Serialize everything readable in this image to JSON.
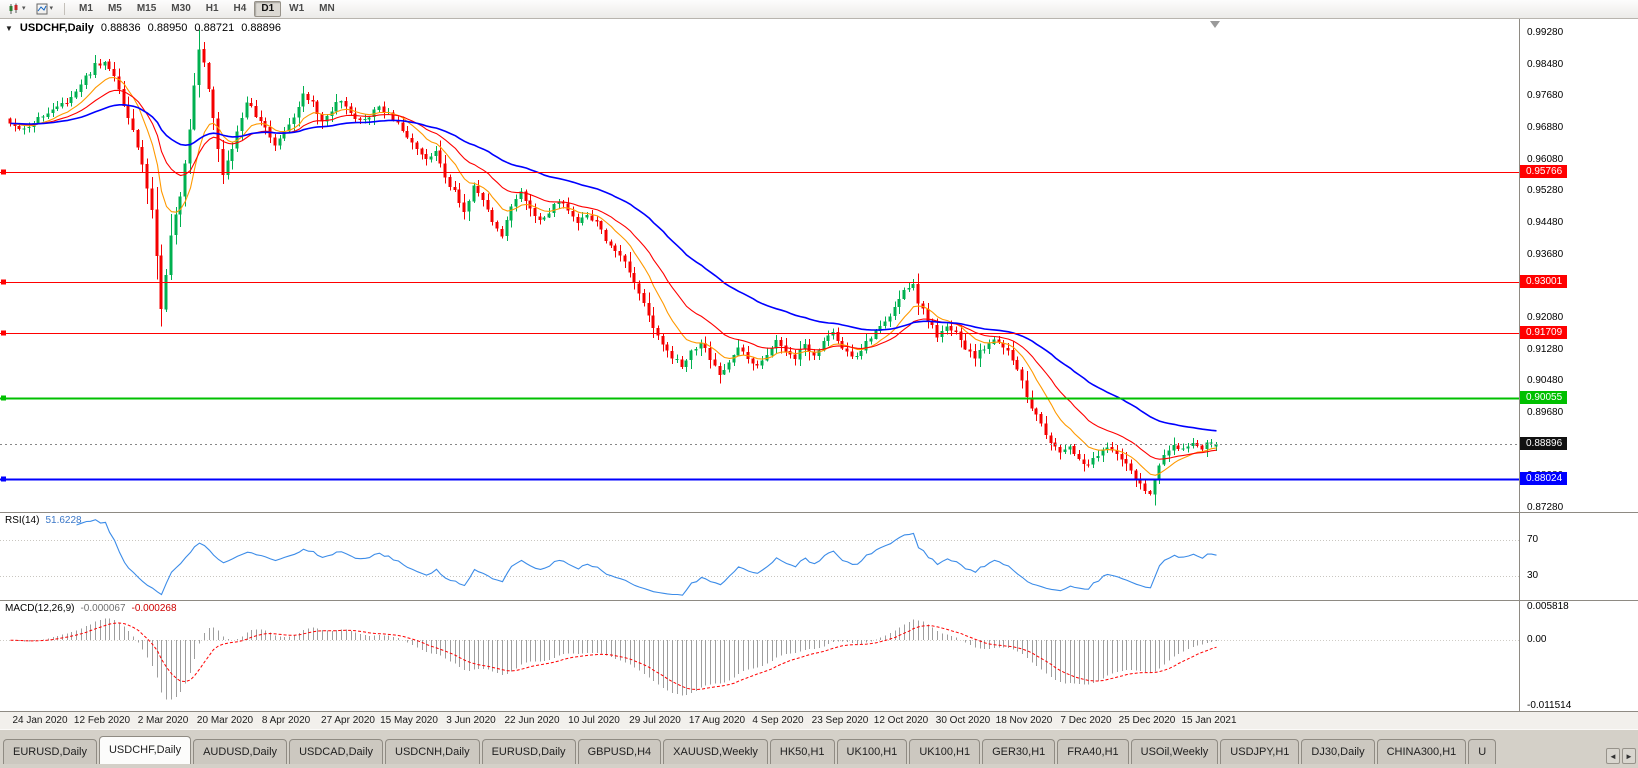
{
  "icons": {
    "collapse": "▼",
    "caret": "▾",
    "scroll_left": "◄",
    "scroll_right": "►"
  },
  "toolbar": {
    "timeframes": [
      "M1",
      "M5",
      "M15",
      "M30",
      "H1",
      "H4",
      "D1",
      "W1",
      "MN"
    ],
    "active_timeframe": "D1"
  },
  "chart": {
    "title": "USDCHF,Daily",
    "ohlc": {
      "open": "0.88836",
      "high": "0.88950",
      "low": "0.88721",
      "close": "0.88896"
    }
  },
  "chart_data": {
    "type": "candlestick",
    "symbol": "USDCHF",
    "timeframe": "Daily",
    "bars": 256,
    "bars_per_label": 13,
    "y_axis": {
      "max": 0.9928,
      "min": 0.8728,
      "tick_labels": [
        "0.99280",
        "0.98480",
        "0.97680",
        "0.96880",
        "0.96080",
        "0.95280",
        "0.94480",
        "0.93680",
        "0.92880",
        "0.92080",
        "0.91280",
        "0.90480",
        "0.89680",
        "0.88880",
        "0.88080",
        "0.87280"
      ]
    },
    "x_axis_labels": [
      "24 Jan 2020",
      "12 Feb 2020",
      "2 Mar 2020",
      "20 Mar 2020",
      "8 Apr 2020",
      "27 Apr 2020",
      "15 May 2020",
      "3 Jun 2020",
      "22 Jun 2020",
      "10 Jul 2020",
      "29 Jul 2020",
      "17 Aug 2020",
      "4 Sep 2020",
      "23 Sep 2020",
      "12 Oct 2020",
      "30 Oct 2020",
      "18 Nov 2020",
      "7 Dec 2020",
      "25 Dec 2020",
      "15 Jan 2021"
    ],
    "last_bar": {
      "open": 0.88836,
      "high": 0.8895,
      "low": 0.88721,
      "close": 0.88896
    },
    "price_anchors": [
      [
        0,
        0.97
      ],
      [
        3,
        0.9688
      ],
      [
        6,
        0.9712
      ],
      [
        9,
        0.973
      ],
      [
        12,
        0.9755
      ],
      [
        15,
        0.98
      ],
      [
        18,
        0.9845
      ],
      [
        20,
        0.9852
      ],
      [
        22,
        0.9815
      ],
      [
        24,
        0.975
      ],
      [
        26,
        0.968
      ],
      [
        28,
        0.96
      ],
      [
        30,
        0.948
      ],
      [
        31,
        0.936
      ],
      [
        32,
        0.923
      ],
      [
        33,
        0.932
      ],
      [
        34,
        0.941
      ],
      [
        36,
        0.952
      ],
      [
        38,
        0.968
      ],
      [
        39,
        0.98
      ],
      [
        40,
        0.9885
      ],
      [
        41,
        0.986
      ],
      [
        42,
        0.979
      ],
      [
        43,
        0.9715
      ],
      [
        44,
        0.964
      ],
      [
        45,
        0.9565
      ],
      [
        46,
        0.96
      ],
      [
        48,
        0.968
      ],
      [
        50,
        0.9755
      ],
      [
        52,
        0.972
      ],
      [
        54,
        0.9685
      ],
      [
        56,
        0.965
      ],
      [
        58,
        0.9685
      ],
      [
        60,
        0.972
      ],
      [
        62,
        0.9775
      ],
      [
        64,
        0.975
      ],
      [
        66,
        0.971
      ],
      [
        68,
        0.9735
      ],
      [
        70,
        0.976
      ],
      [
        72,
        0.973
      ],
      [
        74,
        0.9705
      ],
      [
        76,
        0.972
      ],
      [
        78,
        0.974
      ],
      [
        80,
        0.9725
      ],
      [
        82,
        0.97
      ],
      [
        84,
        0.9665
      ],
      [
        86,
        0.9635
      ],
      [
        88,
        0.9605
      ],
      [
        90,
        0.9625
      ],
      [
        92,
        0.9565
      ],
      [
        94,
        0.9525
      ],
      [
        96,
        0.948
      ],
      [
        98,
        0.954
      ],
      [
        100,
        0.9505
      ],
      [
        102,
        0.9455
      ],
      [
        104,
        0.942
      ],
      [
        106,
        0.949
      ],
      [
        108,
        0.952
      ],
      [
        110,
        0.948
      ],
      [
        112,
        0.9455
      ],
      [
        114,
        0.9475
      ],
      [
        116,
        0.9505
      ],
      [
        118,
        0.948
      ],
      [
        120,
        0.945
      ],
      [
        122,
        0.947
      ],
      [
        124,
        0.9445
      ],
      [
        126,
        0.9405
      ],
      [
        128,
        0.938
      ],
      [
        130,
        0.9345
      ],
      [
        132,
        0.929
      ],
      [
        134,
        0.9245
      ],
      [
        136,
        0.9185
      ],
      [
        138,
        0.9135
      ],
      [
        140,
        0.911
      ],
      [
        142,
        0.9085
      ],
      [
        144,
        0.912
      ],
      [
        146,
        0.915
      ],
      [
        148,
        0.9105
      ],
      [
        150,
        0.906
      ],
      [
        152,
        0.909
      ],
      [
        154,
        0.913
      ],
      [
        156,
        0.911
      ],
      [
        158,
        0.9085
      ],
      [
        160,
        0.912
      ],
      [
        162,
        0.915
      ],
      [
        164,
        0.913
      ],
      [
        166,
        0.9105
      ],
      [
        168,
        0.914
      ],
      [
        170,
        0.9115
      ],
      [
        172,
        0.9145
      ],
      [
        174,
        0.917
      ],
      [
        176,
        0.9135
      ],
      [
        178,
        0.9105
      ],
      [
        180,
        0.913
      ],
      [
        182,
        0.916
      ],
      [
        184,
        0.9185
      ],
      [
        186,
        0.921
      ],
      [
        188,
        0.9255
      ],
      [
        190,
        0.929
      ],
      [
        191,
        0.9298
      ],
      [
        192,
        0.925
      ],
      [
        194,
        0.9205
      ],
      [
        196,
        0.9165
      ],
      [
        198,
        0.919
      ],
      [
        200,
        0.917
      ],
      [
        202,
        0.9135
      ],
      [
        204,
        0.9105
      ],
      [
        206,
        0.9135
      ],
      [
        208,
        0.916
      ],
      [
        210,
        0.914
      ],
      [
        212,
        0.9105
      ],
      [
        214,
        0.9045
      ],
      [
        216,
        0.8985
      ],
      [
        218,
        0.8935
      ],
      [
        220,
        0.8895
      ],
      [
        222,
        0.8865
      ],
      [
        224,
        0.8885
      ],
      [
        226,
        0.8855
      ],
      [
        228,
        0.8835
      ],
      [
        230,
        0.8865
      ],
      [
        232,
        0.8885
      ],
      [
        234,
        0.8862
      ],
      [
        236,
        0.884
      ],
      [
        238,
        0.88
      ],
      [
        240,
        0.8772
      ],
      [
        241,
        0.876
      ],
      [
        242,
        0.8795
      ],
      [
        243,
        0.8835
      ],
      [
        244,
        0.8862
      ],
      [
        246,
        0.8882
      ],
      [
        248,
        0.8872
      ],
      [
        250,
        0.8892
      ],
      [
        252,
        0.888
      ],
      [
        254,
        0.8895
      ],
      [
        255,
        0.889
      ]
    ],
    "moving_averages": [
      {
        "name": "fast-ma",
        "period": 10,
        "color": "#FF9900",
        "width": 1.1
      },
      {
        "name": "mid-ma",
        "period": 21,
        "color": "#FF0000",
        "width": 1.1
      },
      {
        "name": "slow-ma",
        "period": 50,
        "color": "#0000FF",
        "width": 1.6
      }
    ],
    "h_lines": [
      {
        "price": 0.95766,
        "label": "0.95766",
        "color": "#FF0000",
        "width": 1.4
      },
      {
        "price": 0.93001,
        "label": "0.93001",
        "color": "#FF0000",
        "width": 1.4
      },
      {
        "price": 0.91709,
        "label": "0.91709",
        "color": "#FF0000",
        "width": 1.4
      },
      {
        "price": 0.90055,
        "label": "0.90055",
        "color": "#00C000",
        "width": 1.6
      },
      {
        "price": 0.88024,
        "label": "0.88024",
        "color": "#0000FF",
        "width": 2
      }
    ],
    "current_price": {
      "value": 0.88896,
      "label": "0.88896",
      "color": "#111111"
    },
    "colors": {
      "bull": "#00B050",
      "bear": "#F40000",
      "background": "#FFFFFF",
      "axis_text": "#000000"
    },
    "rsi": {
      "name": "RSI(14)",
      "value_display": "51.6228",
      "value_color": "#3c78c8",
      "period": 14,
      "levels": [
        70,
        30
      ],
      "color": "#3C8CE8"
    },
    "macd": {
      "name": "MACD(12,26,9)",
      "values_display": [
        "-0.000067",
        "-0.000268"
      ],
      "value_colors": [
        "#707070",
        "#cc0000"
      ],
      "fast": 12,
      "slow": 26,
      "signal": 9,
      "axis_labels": [
        "0.005818",
        "0.00",
        "-0.011514"
      ],
      "axis_max": 0.005818,
      "axis_min": -0.011514,
      "histogram_color": "#9e9e9e",
      "signal_color": "#FF0000"
    }
  },
  "tabs": {
    "items": [
      "EURUSD,Daily",
      "USDCHF,Daily",
      "AUDUSD,Daily",
      "USDCAD,Daily",
      "USDCNH,Daily",
      "EURUSD,Daily",
      "GBPUSD,H4",
      "XAUUSD,Weekly",
      "HK50,H1",
      "UK100,H1",
      "UK100,H1",
      "GER30,H1",
      "FRA40,H1",
      "USOil,Weekly",
      "USDJPY,H1",
      "DJ30,Daily",
      "CHINA300,H1",
      "U"
    ],
    "active_index": 1
  }
}
